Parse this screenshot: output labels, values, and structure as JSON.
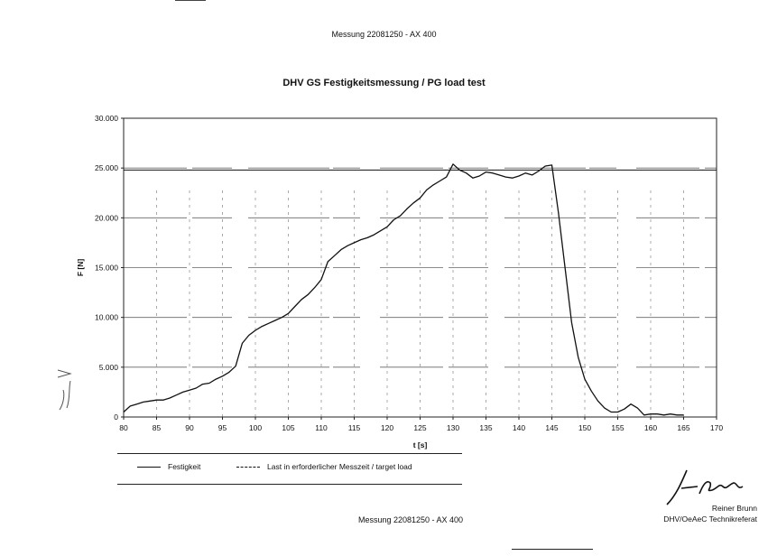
{
  "header": {
    "text": "Messung 22081250 - AX 400"
  },
  "footer": {
    "text": "Messung 22081250 - AX 400"
  },
  "signer": {
    "name": "Reiner Brunn",
    "org": "DHV/OeAeC Technikreferat"
  },
  "legend": {
    "solid": "Festigkeit",
    "dashed": "Last in erforderlicher Messzeit / target load"
  },
  "colors": {
    "line": "#111111",
    "axis": "#222222",
    "grid": "#666666"
  },
  "chart_data": {
    "type": "line",
    "title": "DHV GS Festigkeitsmessung / PG load test",
    "xlabel": "t [s]",
    "ylabel": "F [N]",
    "xlim": [
      80,
      170
    ],
    "ylim": [
      0,
      30000
    ],
    "x_ticks": [
      "80",
      "85",
      "90",
      "95",
      "100",
      "105",
      "110",
      "115",
      "120",
      "125",
      "130",
      "135",
      "140",
      "145",
      "150",
      "155",
      "160",
      "165",
      "170"
    ],
    "y_ticks": [
      "0",
      "5.000",
      "10.000",
      "15.000",
      "20.000",
      "25.000",
      "30.000"
    ],
    "grid": true,
    "legend_position": "bottom",
    "series": [
      {
        "name": "Festigkeit",
        "style": "solid",
        "x": [
          80,
          81,
          82,
          83,
          84,
          85,
          86,
          87,
          88,
          89,
          90,
          91,
          92,
          93,
          94,
          95,
          96,
          97,
          98,
          99,
          100,
          101,
          102,
          103,
          104,
          105,
          106,
          107,
          108,
          109,
          110,
          111,
          112,
          113,
          114,
          115,
          116,
          117,
          118,
          119,
          120,
          121,
          122,
          123,
          124,
          125,
          126,
          127,
          128,
          129,
          130,
          131,
          132,
          133,
          134,
          135,
          136,
          137,
          138,
          139,
          140,
          141,
          142,
          143,
          144,
          145,
          146,
          147,
          148,
          149,
          150,
          151,
          152,
          153,
          154,
          155,
          156,
          157,
          158,
          159,
          160,
          161,
          162,
          163,
          164,
          165
        ],
        "y": [
          500,
          1100,
          1300,
          1500,
          1600,
          1700,
          1700,
          1900,
          2200,
          2500,
          2700,
          2900,
          3300,
          3400,
          3800,
          4100,
          4500,
          5100,
          7400,
          8200,
          8700,
          9100,
          9400,
          9700,
          10000,
          10400,
          11100,
          11800,
          12300,
          13000,
          13800,
          15600,
          16200,
          16800,
          17200,
          17500,
          17800,
          18000,
          18300,
          18700,
          19100,
          19800,
          20200,
          20900,
          21500,
          22000,
          22800,
          23300,
          23700,
          24100,
          25400,
          24800,
          24500,
          24000,
          24200,
          24600,
          24500,
          24300,
          24100,
          24000,
          24200,
          24500,
          24300,
          24700,
          25200,
          25300,
          20500,
          15000,
          9500,
          6000,
          3800,
          2600,
          1600,
          900,
          500,
          500,
          800,
          1300,
          900,
          200,
          300,
          300,
          200,
          300,
          200,
          200
        ]
      },
      {
        "name": "Last in erforderlicher Messzeit / target load",
        "style": "dashed",
        "x": [
          80,
          170
        ],
        "y": [
          24800,
          24800
        ]
      }
    ]
  }
}
